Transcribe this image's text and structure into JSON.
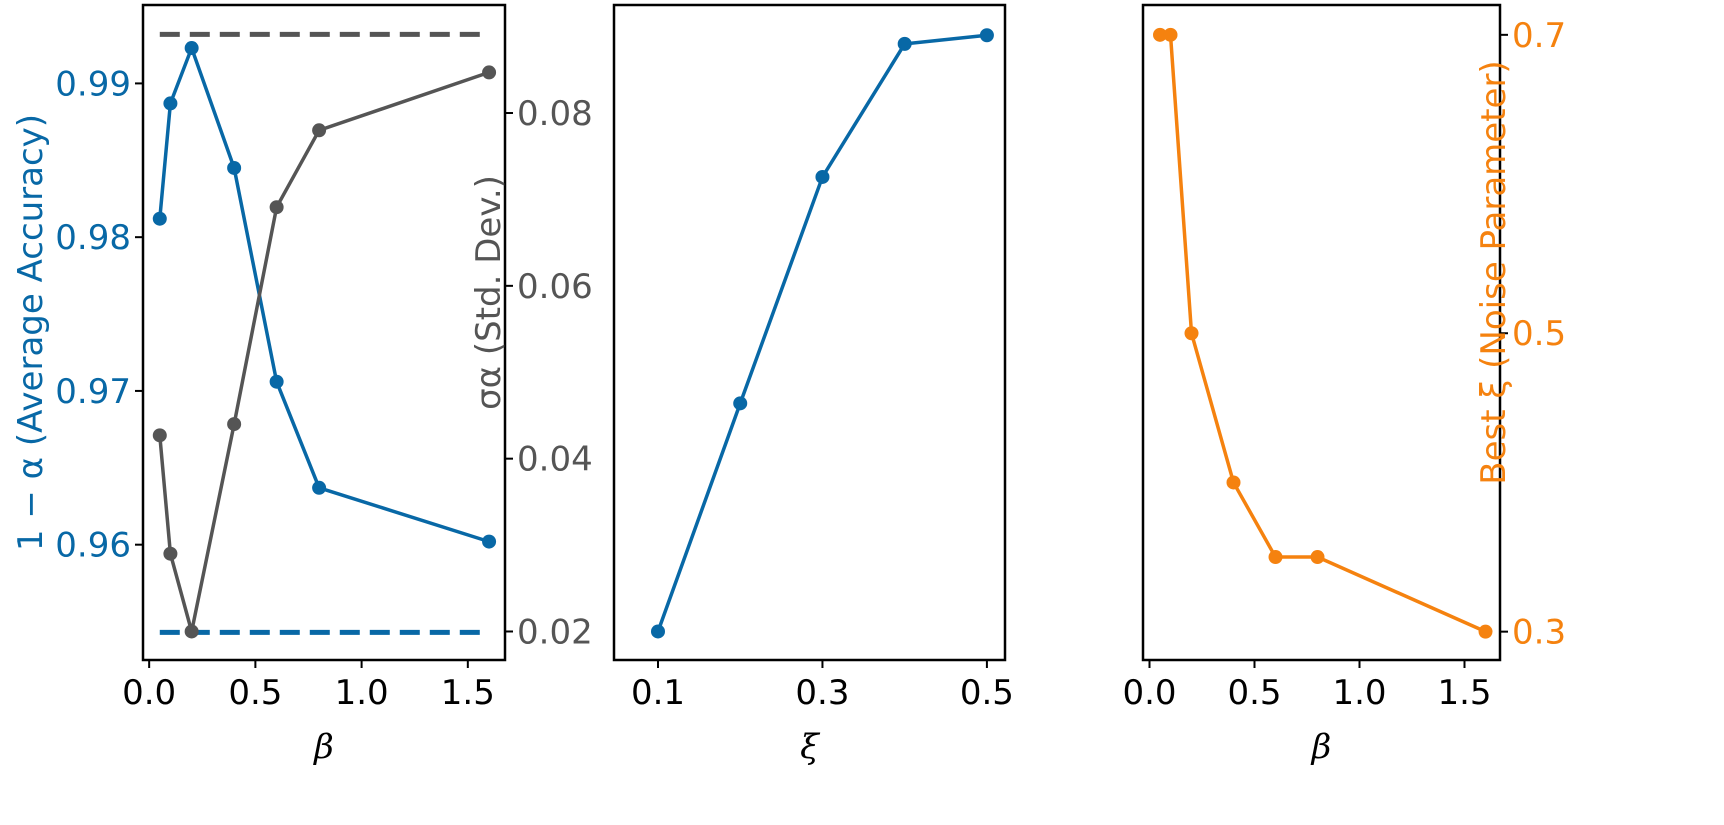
{
  "colors": {
    "blue": "#0868a6",
    "gray": "#555555",
    "orange": "#f5820f",
    "axis": "#000000"
  },
  "chart_data": [
    {
      "type": "line",
      "panel": "left",
      "xlabel": "β",
      "ylabel_left": "1 − α  (Average Accuracy)",
      "ylabel_right": "σα  (Std. Dev.)",
      "xlim": [
        -0.029,
        1.675
      ],
      "ylim_left": [
        0.9525,
        0.9951
      ],
      "ylim_right": [
        0.0167,
        0.0925
      ],
      "xticks": [
        {
          "v": 0.0,
          "label": "0.0"
        },
        {
          "v": 0.5,
          "label": "0.5"
        },
        {
          "v": 1.0,
          "label": "1.0"
        },
        {
          "v": 1.5,
          "label": "1.5"
        }
      ],
      "yticks_left": [
        {
          "v": 0.96,
          "label": "0.96"
        },
        {
          "v": 0.97,
          "label": "0.97"
        },
        {
          "v": 0.98,
          "label": "0.98"
        },
        {
          "v": 0.99,
          "label": "0.99"
        }
      ],
      "yticks_right": [
        {
          "v": 0.02,
          "label": "0.02"
        },
        {
          "v": 0.04,
          "label": "0.04"
        },
        {
          "v": 0.06,
          "label": "0.06"
        },
        {
          "v": 0.08,
          "label": "0.08"
        }
      ],
      "series": [
        {
          "name": "accuracy",
          "axis": "left",
          "color": "blue",
          "x": [
            0.05,
            0.1,
            0.2,
            0.4,
            0.6,
            0.8,
            1.6
          ],
          "y": [
            0.9812,
            0.9887,
            0.9923,
            0.9845,
            0.9706,
            0.9637,
            0.9602
          ]
        },
        {
          "name": "std",
          "axis": "right",
          "color": "gray",
          "x": [
            0.05,
            0.1,
            0.2,
            0.4,
            0.6,
            0.8,
            1.6
          ],
          "y": [
            0.0427,
            0.029,
            0.02,
            0.044,
            0.0691,
            0.078,
            0.0847
          ]
        }
      ],
      "hlines": [
        {
          "axis": "left",
          "color": "blue",
          "y": 0.9543,
          "x": [
            0.05,
            1.6
          ]
        },
        {
          "axis": "right",
          "color": "gray",
          "y": 0.0891,
          "x": [
            0.05,
            1.6
          ]
        }
      ]
    },
    {
      "type": "line",
      "panel": "middle",
      "xlabel": "ξ",
      "xlim": [
        0.0465,
        0.522
      ],
      "ylim": [
        0.0167,
        0.0925
      ],
      "xticks": [
        {
          "v": 0.1,
          "label": "0.1"
        },
        {
          "v": 0.3,
          "label": "0.3"
        },
        {
          "v": 0.5,
          "label": "0.5"
        }
      ],
      "series": [
        {
          "name": "std_vs_xi",
          "color": "blue",
          "x": [
            0.1,
            0.2,
            0.3,
            0.4,
            0.5
          ],
          "y": [
            0.02,
            0.0464,
            0.0726,
            0.088,
            0.089
          ]
        }
      ]
    },
    {
      "type": "line",
      "panel": "right",
      "xlabel": "β",
      "ylabel_right": "Best ξ  (Noise Parameter)",
      "xlim": [
        -0.031,
        1.669
      ],
      "ylim": [
        0.281,
        0.72
      ],
      "xticks": [
        {
          "v": 0.0,
          "label": "0.0"
        },
        {
          "v": 0.5,
          "label": "0.5"
        },
        {
          "v": 1.0,
          "label": "1.0"
        },
        {
          "v": 1.5,
          "label": "1.5"
        }
      ],
      "yticks_right": [
        {
          "v": 0.3,
          "label": "0.3"
        },
        {
          "v": 0.5,
          "label": "0.5"
        },
        {
          "v": 0.7,
          "label": "0.7"
        }
      ],
      "series": [
        {
          "name": "best_xi",
          "color": "orange",
          "x": [
            0.05,
            0.1,
            0.2,
            0.4,
            0.6,
            0.8,
            1.6
          ],
          "y": [
            0.7,
            0.7,
            0.5,
            0.4,
            0.35,
            0.35,
            0.3
          ]
        }
      ]
    }
  ]
}
